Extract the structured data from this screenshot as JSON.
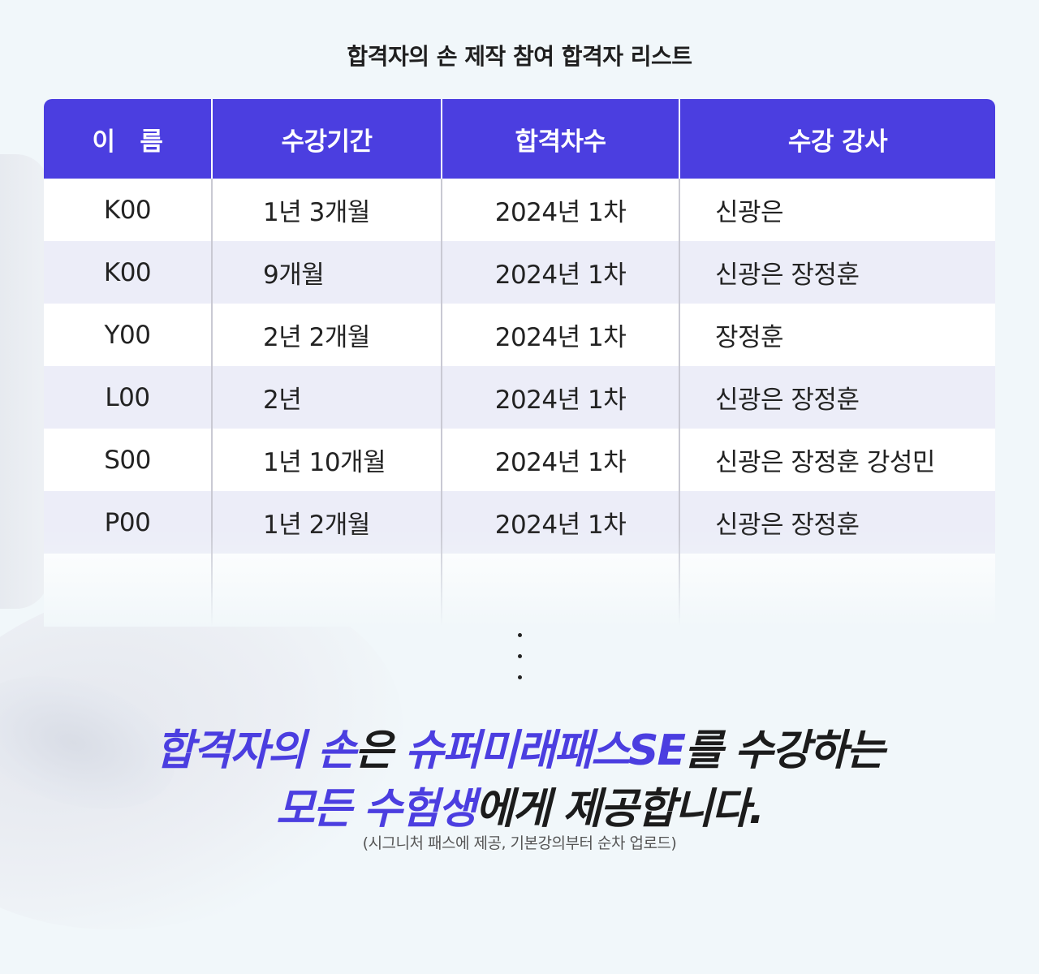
{
  "title": "합격자의 손 제작 참여 합격자 리스트",
  "table": {
    "headers": [
      "이   름",
      "수강기간",
      "합격차수",
      "수강 강사"
    ],
    "rows": [
      {
        "name": "K00",
        "period": "1년 3개월",
        "round": "2024년 1차",
        "teacher": "신광은"
      },
      {
        "name": "K00",
        "period": "9개월",
        "round": "2024년 1차",
        "teacher": "신광은 장정훈"
      },
      {
        "name": "Y00",
        "period": "2년 2개월",
        "round": "2024년 1차",
        "teacher": "장정훈"
      },
      {
        "name": "L00",
        "period": "2년",
        "round": "2024년 1차",
        "teacher": "신광은 장정훈"
      },
      {
        "name": "S00",
        "period": "1년 10개월",
        "round": "2024년 1차",
        "teacher": "신광은 장정훈 강성민"
      },
      {
        "name": "P00",
        "period": "1년 2개월",
        "round": "2024년 1차",
        "teacher": "신광은 장정훈"
      }
    ]
  },
  "headline": {
    "line1": {
      "accent1": "합격자의 손",
      "text1": "은 ",
      "accent2": "슈퍼미래패스SE",
      "text2": "를 수강하는"
    },
    "line2": {
      "accent1": "모든 수험생",
      "text1": "에게 제공합니다."
    }
  },
  "footnote": "(시그니처 패스에 제공, 기본강의부터 순차 업로드)",
  "colors": {
    "accent": "#4b3ee0",
    "row_alt": "#ecedf8",
    "background": "#f1f7fa"
  }
}
